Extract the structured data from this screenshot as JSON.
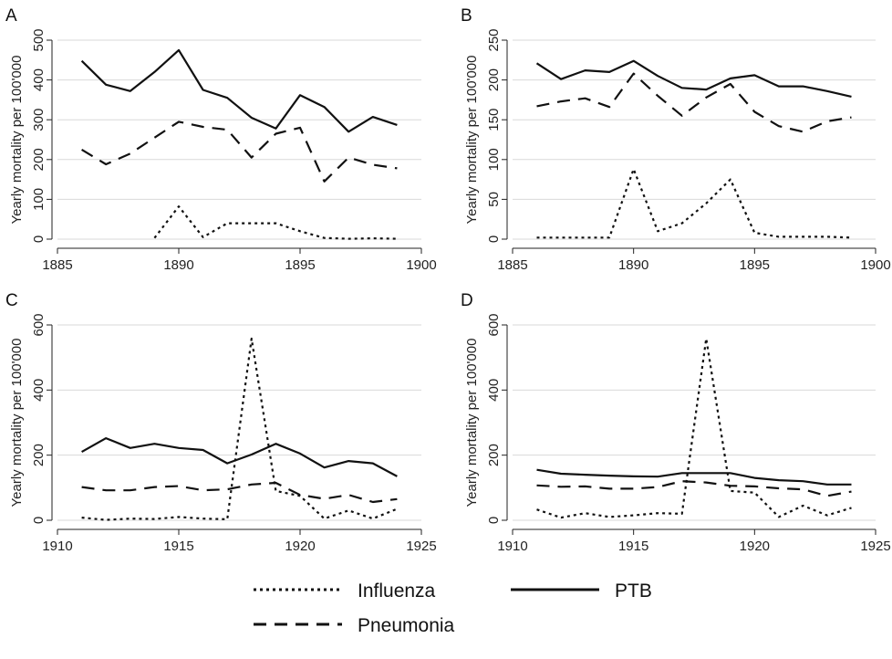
{
  "chart_data": [
    {
      "panel": "A",
      "type": "line",
      "ylabel": "Yearly mortality per 100'000",
      "xlim": [
        1885,
        1900
      ],
      "ylim": [
        0,
        500
      ],
      "xticks": [
        1885,
        1890,
        1895,
        1900
      ],
      "yticks": [
        0,
        100,
        200,
        300,
        400,
        500
      ],
      "grid": "horizontal",
      "series": [
        {
          "name": "PTB",
          "x": [
            1886,
            1887,
            1888,
            1889,
            1890,
            1891,
            1892,
            1893,
            1894,
            1895,
            1896,
            1897,
            1898,
            1899
          ],
          "values": [
            448,
            388,
            372,
            420,
            475,
            375,
            355,
            305,
            278,
            362,
            332,
            270,
            307,
            287
          ]
        },
        {
          "name": "Pneumonia",
          "x": [
            1886,
            1887,
            1888,
            1889,
            1890,
            1891,
            1892,
            1893,
            1894,
            1895,
            1896,
            1897,
            1898,
            1899
          ],
          "values": [
            225,
            188,
            215,
            255,
            295,
            282,
            275,
            205,
            265,
            280,
            145,
            205,
            187,
            178
          ]
        },
        {
          "name": "Influenza",
          "x": [
            1889,
            1890,
            1891,
            1892,
            1893,
            1894,
            1895,
            1896,
            1897,
            1898,
            1899
          ],
          "values": [
            3,
            82,
            5,
            40,
            40,
            40,
            20,
            3,
            1,
            2,
            1
          ]
        }
      ]
    },
    {
      "panel": "B",
      "type": "line",
      "ylabel": "Yearly mortality per 100'000",
      "xlim": [
        1885,
        1900
      ],
      "ylim": [
        0,
        250
      ],
      "xticks": [
        1885,
        1890,
        1895,
        1900
      ],
      "yticks": [
        0,
        50,
        100,
        150,
        200,
        250
      ],
      "grid": "horizontal",
      "series": [
        {
          "name": "PTB",
          "x": [
            1886,
            1887,
            1888,
            1889,
            1890,
            1891,
            1892,
            1893,
            1894,
            1895,
            1896,
            1897,
            1898,
            1899
          ],
          "values": [
            221,
            201,
            212,
            210,
            224,
            205,
            190,
            188,
            202,
            206,
            192,
            192,
            186,
            179
          ]
        },
        {
          "name": "Pneumonia",
          "x": [
            1886,
            1887,
            1888,
            1889,
            1890,
            1891,
            1892,
            1893,
            1894,
            1895,
            1896,
            1897,
            1898,
            1899
          ],
          "values": [
            167,
            173,
            177,
            166,
            208,
            180,
            155,
            178,
            195,
            160,
            142,
            135,
            148,
            153
          ]
        },
        {
          "name": "Influenza",
          "x": [
            1886,
            1887,
            1888,
            1889,
            1890,
            1891,
            1892,
            1893,
            1894,
            1895,
            1896,
            1897,
            1898,
            1899
          ],
          "values": [
            2,
            2,
            2,
            2,
            88,
            10,
            20,
            45,
            75,
            8,
            3,
            3,
            3,
            2
          ]
        }
      ]
    },
    {
      "panel": "C",
      "type": "line",
      "ylabel": "Yearly mortality per 100'000",
      "xlim": [
        1910,
        1925
      ],
      "ylim": [
        0,
        600
      ],
      "xticks": [
        1910,
        1915,
        1920,
        1925
      ],
      "yticks": [
        0,
        200,
        400,
        600
      ],
      "grid": "horizontal",
      "series": [
        {
          "name": "PTB",
          "x": [
            1911,
            1912,
            1913,
            1914,
            1915,
            1916,
            1917,
            1918,
            1919,
            1920,
            1921,
            1922,
            1923,
            1924
          ],
          "values": [
            210,
            252,
            222,
            235,
            222,
            216,
            175,
            202,
            235,
            205,
            162,
            182,
            175,
            135
          ]
        },
        {
          "name": "Pneumonia",
          "x": [
            1911,
            1912,
            1913,
            1914,
            1915,
            1916,
            1917,
            1918,
            1919,
            1920,
            1921,
            1922,
            1923,
            1924
          ],
          "values": [
            102,
            92,
            92,
            102,
            105,
            92,
            95,
            110,
            115,
            78,
            66,
            78,
            56,
            65
          ]
        },
        {
          "name": "Influenza",
          "x": [
            1911,
            1912,
            1913,
            1914,
            1915,
            1916,
            1917,
            1918,
            1919,
            1920,
            1921,
            1922,
            1923,
            1924
          ],
          "values": [
            8,
            1,
            5,
            4,
            10,
            5,
            3,
            558,
            90,
            75,
            5,
            30,
            5,
            35
          ]
        }
      ]
    },
    {
      "panel": "D",
      "type": "line",
      "ylabel": "Yearly mortality per 100'000",
      "xlim": [
        1910,
        1925
      ],
      "ylim": [
        0,
        600
      ],
      "xticks": [
        1910,
        1915,
        1920,
        1925
      ],
      "yticks": [
        0,
        200,
        400,
        600
      ],
      "grid": "horizontal",
      "series": [
        {
          "name": "PTB",
          "x": [
            1911,
            1912,
            1913,
            1914,
            1915,
            1916,
            1917,
            1918,
            1919,
            1920,
            1921,
            1922,
            1923,
            1924
          ],
          "values": [
            155,
            143,
            140,
            137,
            135,
            134,
            145,
            145,
            145,
            130,
            123,
            120,
            110,
            110
          ]
        },
        {
          "name": "Pneumonia",
          "x": [
            1911,
            1912,
            1913,
            1914,
            1915,
            1916,
            1917,
            1918,
            1919,
            1920,
            1921,
            1922,
            1923,
            1924
          ],
          "values": [
            107,
            103,
            104,
            97,
            97,
            102,
            120,
            116,
            106,
            104,
            98,
            95,
            75,
            88
          ]
        },
        {
          "name": "Influenza",
          "x": [
            1911,
            1912,
            1913,
            1914,
            1915,
            1916,
            1917,
            1918,
            1919,
            1920,
            1921,
            1922,
            1923,
            1924
          ],
          "values": [
            33,
            8,
            22,
            10,
            15,
            22,
            20,
            558,
            90,
            85,
            10,
            45,
            15,
            38
          ]
        }
      ]
    }
  ],
  "legend": {
    "items": [
      {
        "label": "Influenza",
        "style": "dotted"
      },
      {
        "label": "PTB",
        "style": "solid"
      },
      {
        "label": "Pneumonia",
        "style": "dashed"
      }
    ],
    "placement": "bottom"
  },
  "colors": {
    "line": "#111111",
    "grid": "#d9d9d9",
    "axis": "#222222"
  }
}
